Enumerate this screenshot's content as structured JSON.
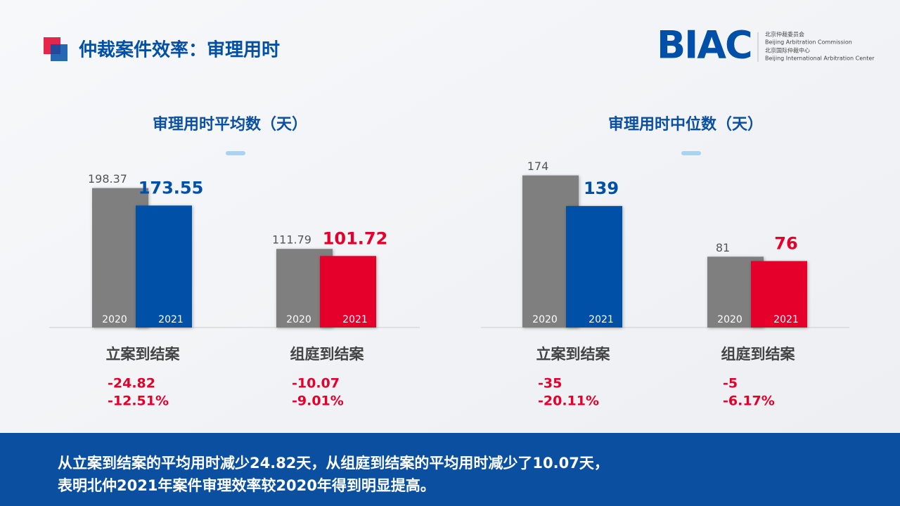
{
  "header": {
    "title": "仲裁案件效率：审理用时",
    "logo": "BIAC",
    "logo_lines": [
      "北京仲裁委员会",
      "Beijing Arbitration Commission",
      "北京国际仲裁中心",
      "Beijing International Arbitration Center"
    ]
  },
  "chart_data": [
    {
      "type": "bar",
      "title": "审理用时平均数（天）",
      "categories": [
        "立案到结案",
        "组庭到结案"
      ],
      "series": [
        {
          "name": "2020",
          "color": "#7f7f7f",
          "values": [
            198.37,
            111.79
          ]
        },
        {
          "name": "2021",
          "colors": [
            "#0050a8",
            "#e4002b"
          ],
          "values": [
            173.55,
            101.72
          ]
        }
      ],
      "differences": [
        -24.82,
        -10.07
      ],
      "percent_changes": [
        "-12.51%",
        "-9.01%"
      ],
      "ylim": [
        0,
        240
      ]
    },
    {
      "type": "bar",
      "title": "审理用时中位数（天）",
      "categories": [
        "立案到结案",
        "组庭到结案"
      ],
      "series": [
        {
          "name": "2020",
          "color": "#7f7f7f",
          "values": [
            174,
            81
          ]
        },
        {
          "name": "2021",
          "colors": [
            "#0050a8",
            "#e4002b"
          ],
          "values": [
            139,
            76
          ]
        }
      ],
      "differences": [
        -35,
        -5
      ],
      "percent_changes": [
        "-20.11%",
        "-6.17%"
      ],
      "ylim": [
        0,
        193
      ]
    }
  ],
  "footer": {
    "lines": [
      "从立案到结案的平均用时减少24.82天，从组庭到结案的平均用时减少了10.07天，",
      "表明北仲2021年案件审理效率较2020年得到明显提高。"
    ]
  }
}
